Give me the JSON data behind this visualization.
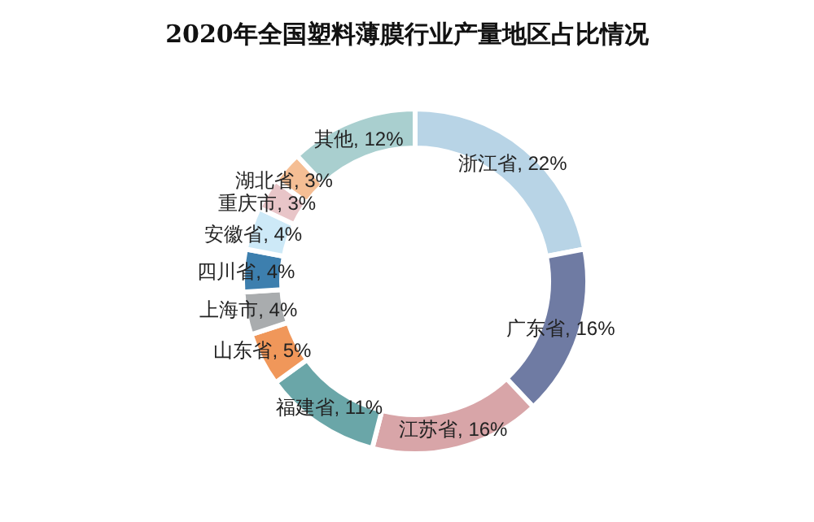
{
  "chart_data": {
    "type": "donut",
    "title": "2020年全国塑料薄膜行业产量地区占比情况",
    "categories": [
      "浙江省",
      "广东省",
      "江苏省",
      "福建省",
      "山东省",
      "上海市",
      "四川省",
      "安徽省",
      "重庆市",
      "湖北省",
      "其他"
    ],
    "values": [
      22,
      16,
      16,
      11,
      5,
      4,
      4,
      4,
      3,
      3,
      12
    ],
    "value_labels": [
      "22%",
      "16%",
      "16%",
      "11%",
      "5%",
      "4%",
      "4%",
      "4%",
      "3%",
      "3%",
      "12%"
    ],
    "colors": [
      "#b8d4e6",
      "#6f7ba3",
      "#d8a5a8",
      "#6aa6a8",
      "#f0975a",
      "#a9acae",
      "#3d7fae",
      "#cde9f7",
      "#e8c5c8",
      "#f5be94",
      "#a9cfcf"
    ],
    "legend": false
  }
}
